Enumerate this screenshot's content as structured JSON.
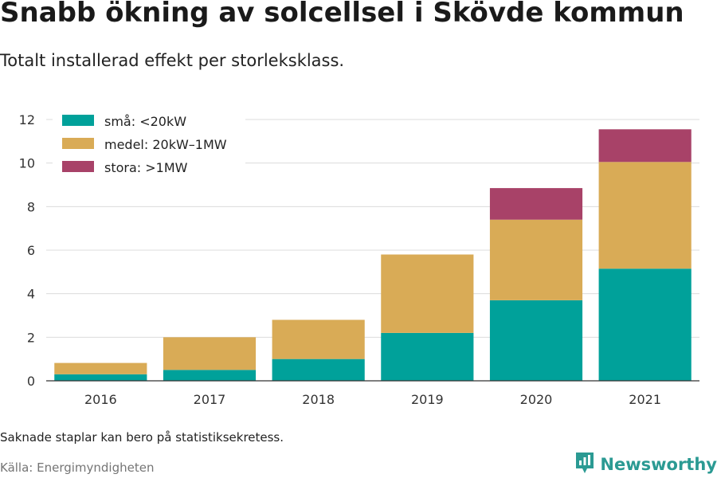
{
  "header": {
    "title": "Snabb ökning av solcellsel i Skövde kommun",
    "subtitle": "Totalt installerad effekt per storleksklass."
  },
  "footer": {
    "note": "Saknade staplar kan bero på statistiksekretess.",
    "source": "Källa: Energimyndigheten",
    "brand": "Newsworthy",
    "brand_icon": "newsworthy-logo-icon"
  },
  "chart_data": {
    "type": "bar",
    "stacked": true,
    "categories": [
      "2016",
      "2017",
      "2018",
      "2019",
      "2020",
      "2021"
    ],
    "series": [
      {
        "name": "små: <20kW",
        "color": "#00a19a",
        "values": [
          0.3,
          0.5,
          1.0,
          2.2,
          3.7,
          5.15
        ]
      },
      {
        "name": "medel: 20kW–1MW",
        "color": "#d9ab56",
        "values": [
          0.52,
          1.5,
          1.8,
          3.6,
          3.7,
          4.9
        ]
      },
      {
        "name": "stora: >1MW",
        "color": "#a84268",
        "values": [
          0,
          0,
          0,
          0,
          1.45,
          1.5
        ]
      }
    ],
    "ylim": [
      0,
      12
    ],
    "yticks": [
      0,
      2,
      4,
      6,
      8,
      10,
      12
    ],
    "grid": true,
    "legend_position": "top-left"
  }
}
